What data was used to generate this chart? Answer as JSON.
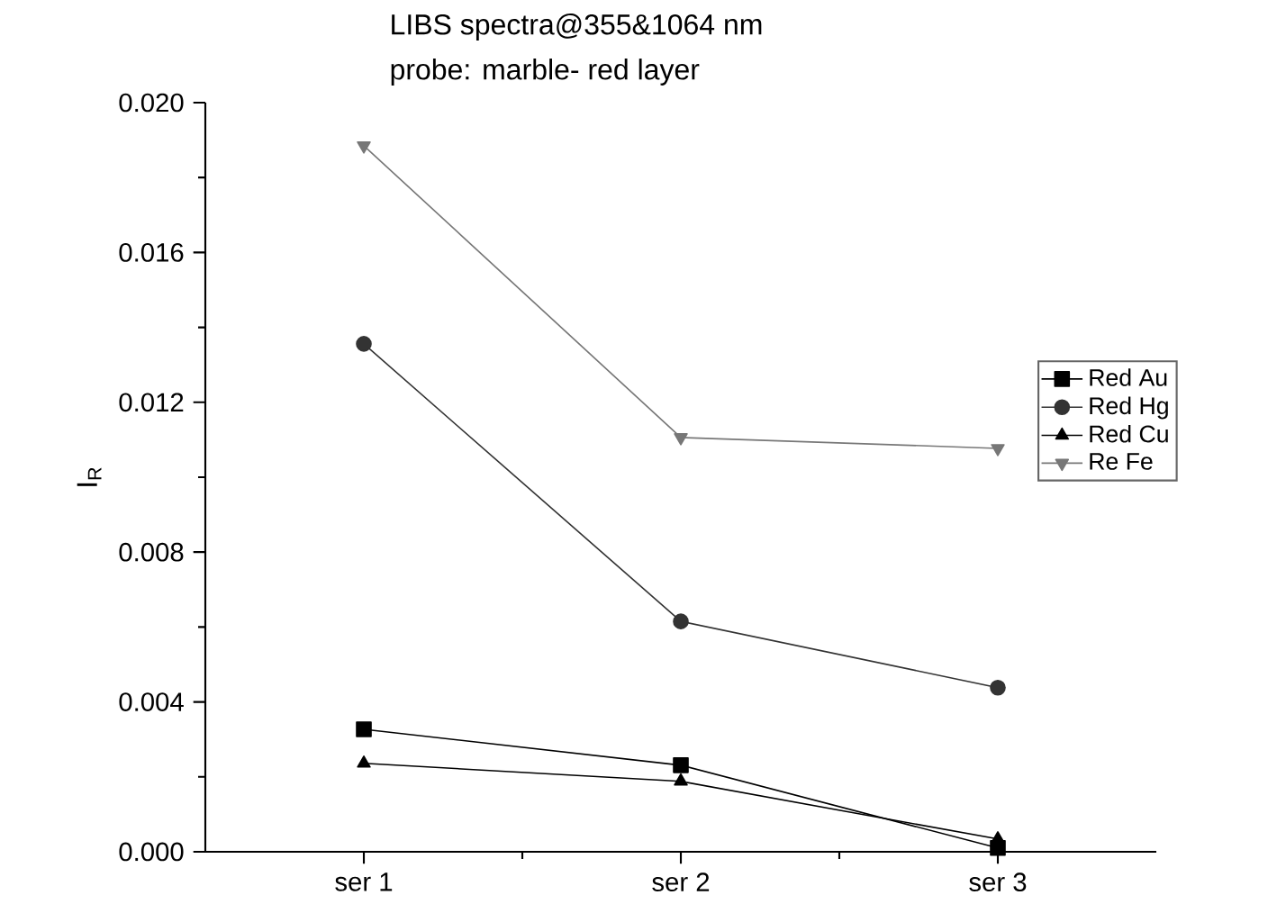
{
  "chart_data": {
    "type": "line",
    "title": "LIBS spectra@355&1064 nm",
    "subtitle": "probe: marble- red layer",
    "ylabel": "I$_{R}$",
    "categories": [
      "ser 1",
      "ser 2",
      "ser 3"
    ],
    "ylim": [
      0,
      0.02
    ],
    "yticks": [
      {
        "value": 0,
        "label": "0.000"
      },
      {
        "value": 0.004,
        "label": "0.004"
      },
      {
        "value": 0.008,
        "label": "0.008"
      },
      {
        "value": 0.012,
        "label": "0.012"
      },
      {
        "value": 0.016,
        "label": "0.016"
      },
      {
        "value": 0.02,
        "label": "0.020"
      }
    ],
    "legend": "right",
    "grid": false,
    "line_style": "solid",
    "series": [
      {
        "name": "Red Au",
        "color": "#000000",
        "marker": "square",
        "values": [
          0.00327,
          0.00231,
          0.0001
        ]
      },
      {
        "name": "Red Hg",
        "color": "#333333",
        "marker": "circle",
        "values": [
          0.01356,
          0.00615,
          0.00438
        ]
      },
      {
        "name": "Red Cu",
        "color": "#000000",
        "marker": "triangle",
        "values": [
          0.00236,
          0.00188,
          0.00034
        ]
      },
      {
        "name": "Re Fe",
        "color": "#777777",
        "marker": "triangle down",
        "values": [
          0.01885,
          0.01106,
          0.01077
        ]
      }
    ]
  }
}
